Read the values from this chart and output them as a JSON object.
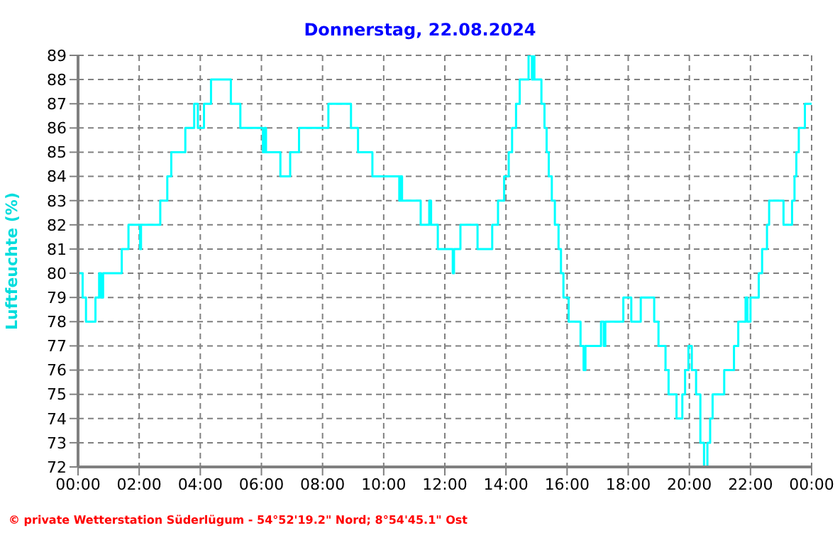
{
  "chart_data": {
    "type": "step",
    "title": "Donnerstag, 22.08.2024",
    "ylabel": "Luftfeuchte (%)",
    "annotations": [
      "© private Wetterstation Süderlügum - 54°52'19.2\" Nord; 8°54'45.1\" Ost"
    ],
    "x": [
      0,
      0.15,
      0.26,
      0.57,
      0.69,
      0.75,
      0.82,
      1.43,
      1.65,
      2.03,
      2.06,
      2.69,
      2.92,
      3.05,
      3.51,
      3.8,
      3.92,
      4.12,
      4.35,
      5.0,
      5.31,
      6.05,
      6.1,
      6.15,
      6.62,
      6.94,
      7.23,
      8.19,
      8.93,
      9.16,
      9.63,
      10.51,
      10.55,
      10.6,
      11.21,
      11.49,
      11.55,
      11.77,
      12.26,
      12.3,
      12.51,
      13.07,
      13.55,
      13.74,
      13.94,
      14.09,
      14.2,
      14.33,
      14.45,
      14.74,
      14.85,
      14.9,
      14.93,
      15.16,
      15.26,
      15.33,
      15.4,
      15.5,
      15.6,
      15.72,
      15.8,
      15.88,
      16.05,
      16.44,
      16.54,
      16.6,
      17.11,
      17.2,
      17.25,
      17.84,
      18.1,
      18.41,
      18.85,
      18.99,
      19.22,
      19.32,
      19.58,
      19.77,
      19.86,
      19.97,
      20.08,
      20.22,
      20.36,
      20.48,
      20.59,
      20.68,
      20.76,
      21.14,
      21.46,
      21.6,
      21.84,
      21.9,
      22.0,
      22.27,
      22.38,
      22.54,
      22.61,
      23.08,
      23.36,
      23.44,
      23.5,
      23.58,
      23.78,
      24
    ],
    "series": [
      {
        "color": "#00ffff",
        "values": [
          80,
          79,
          78,
          79,
          80,
          79,
          80,
          81,
          82,
          81,
          82,
          83,
          84,
          85,
          86,
          87,
          86,
          87,
          88,
          87,
          86,
          85,
          86,
          85,
          84,
          85,
          86,
          87,
          86,
          85,
          84,
          83,
          84,
          83,
          82,
          83,
          82,
          81,
          80,
          81,
          82,
          81,
          82,
          83,
          84,
          85,
          86,
          87,
          88,
          89,
          88,
          89,
          88,
          87,
          86,
          85,
          84,
          83,
          82,
          81,
          80,
          79,
          78,
          77,
          76,
          77,
          78,
          77,
          78,
          79,
          78,
          79,
          78,
          77,
          76,
          75,
          74,
          75,
          76,
          77,
          76,
          75,
          73,
          72,
          73,
          74,
          75,
          76,
          77,
          78,
          79,
          78,
          79,
          80,
          81,
          82,
          83,
          82,
          83,
          84,
          85,
          86,
          87,
          87
        ]
      }
    ],
    "xlim": [
      0,
      24
    ],
    "xticks": [
      {
        "value": 0,
        "label": "00:00"
      },
      {
        "value": 2,
        "label": "02:00"
      },
      {
        "value": 4,
        "label": "04:00"
      },
      {
        "value": 6,
        "label": "06:00"
      },
      {
        "value": 8,
        "label": "08:00"
      },
      {
        "value": 10,
        "label": "10:00"
      },
      {
        "value": 12,
        "label": "12:00"
      },
      {
        "value": 14,
        "label": "14:00"
      },
      {
        "value": 16,
        "label": "16:00"
      },
      {
        "value": 18,
        "label": "18:00"
      },
      {
        "value": 20,
        "label": "20:00"
      },
      {
        "value": 22,
        "label": "22:00"
      },
      {
        "value": 24,
        "label": "00:00"
      }
    ],
    "ylim": [
      72,
      89
    ],
    "yticks": [
      72,
      73,
      74,
      75,
      76,
      77,
      78,
      79,
      80,
      81,
      82,
      83,
      84,
      85,
      86,
      87,
      88,
      89
    ],
    "grid": true,
    "marker": "none",
    "line_style": "solid"
  }
}
